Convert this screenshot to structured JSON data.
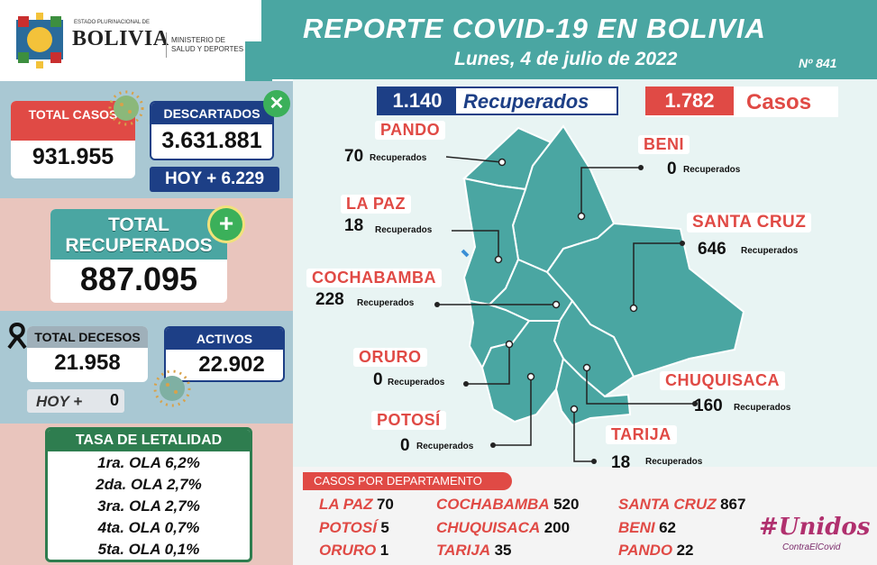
{
  "header": {
    "logo_top": "ESTADO PLURINACIONAL DE",
    "logo_country": "BOLIVIA",
    "ministry_line1": "MINISTERIO DE",
    "ministry_line2": "SALUD Y DEPORTES",
    "title": "REPORTE COVID-19 EN BOLIVIA",
    "date": "Lunes, 4 de julio de 2022",
    "report_number": "Nº 841"
  },
  "left": {
    "total_casos_label": "TOTAL CASOS",
    "total_casos_value": "931.955",
    "descartados_label": "DESCARTADOS",
    "descartados_value": "3.631.881",
    "hoy_descartados": "HOY + 6.229",
    "total_recuperados_label_1": "TOTAL",
    "total_recuperados_label_2": "RECUPERADOS",
    "total_recuperados_value": "887.095",
    "decesos_label": "TOTAL DECESOS",
    "decesos_value": "21.958",
    "hoy_decesos_label": "HOY +",
    "hoy_decesos_value": "0",
    "activos_label": "ACTIVOS",
    "activos_value": "22.902",
    "letalidad_title": "TASA DE LETALIDAD",
    "letalidad": [
      "1ra. OLA 6,2%",
      "2da. OLA 2,7%",
      "3ra. OLA 2,7%",
      "4ta. OLA 0,7%",
      "5ta. OLA 0,1%"
    ]
  },
  "summary": {
    "recuperados_value": "1.140",
    "recuperados_label": "Recuperados",
    "casos_value": "1.782",
    "casos_label": "Casos"
  },
  "map_labels": [
    {
      "dept": "PANDO",
      "value": "70",
      "unit": "Recuperados"
    },
    {
      "dept": "BENI",
      "value": "0",
      "unit": "Recuperados"
    },
    {
      "dept": "LA PAZ",
      "value": "18",
      "unit": "Recuperados"
    },
    {
      "dept": "SANTA CRUZ",
      "value": "646",
      "unit": "Recuperados"
    },
    {
      "dept": "COCHABAMBA",
      "value": "228",
      "unit": "Recuperados"
    },
    {
      "dept": "ORURO",
      "value": "0",
      "unit": "Recuperados"
    },
    {
      "dept": "CHUQUISACA",
      "value": "160",
      "unit": "Recuperados"
    },
    {
      "dept": "POTOSÍ",
      "value": "0",
      "unit": "Recuperados"
    },
    {
      "dept": "TARIJA",
      "value": "18",
      "unit": "Recuperados"
    }
  ],
  "casos_por_departamento": {
    "title": "CASOS POR DEPARTAMENTO",
    "rows": [
      {
        "name": "LA PAZ",
        "value": "70"
      },
      {
        "name": "COCHABAMBA",
        "value": "520"
      },
      {
        "name": "SANTA CRUZ",
        "value": "867"
      },
      {
        "name": "POTOSÍ",
        "value": "5"
      },
      {
        "name": "CHUQUISACA",
        "value": "200"
      },
      {
        "name": "BENI",
        "value": "62"
      },
      {
        "name": "ORURO",
        "value": "1"
      },
      {
        "name": "TARIJA",
        "value": "35"
      },
      {
        "name": "PANDO",
        "value": "22"
      }
    ]
  },
  "campaign": {
    "line1": "#Unidos",
    "line2": "ContraElCovid"
  },
  "colors": {
    "teal": "#4aa6a2",
    "red": "#e04a45",
    "navy": "#1d3f86",
    "green": "#2e7d4f"
  }
}
